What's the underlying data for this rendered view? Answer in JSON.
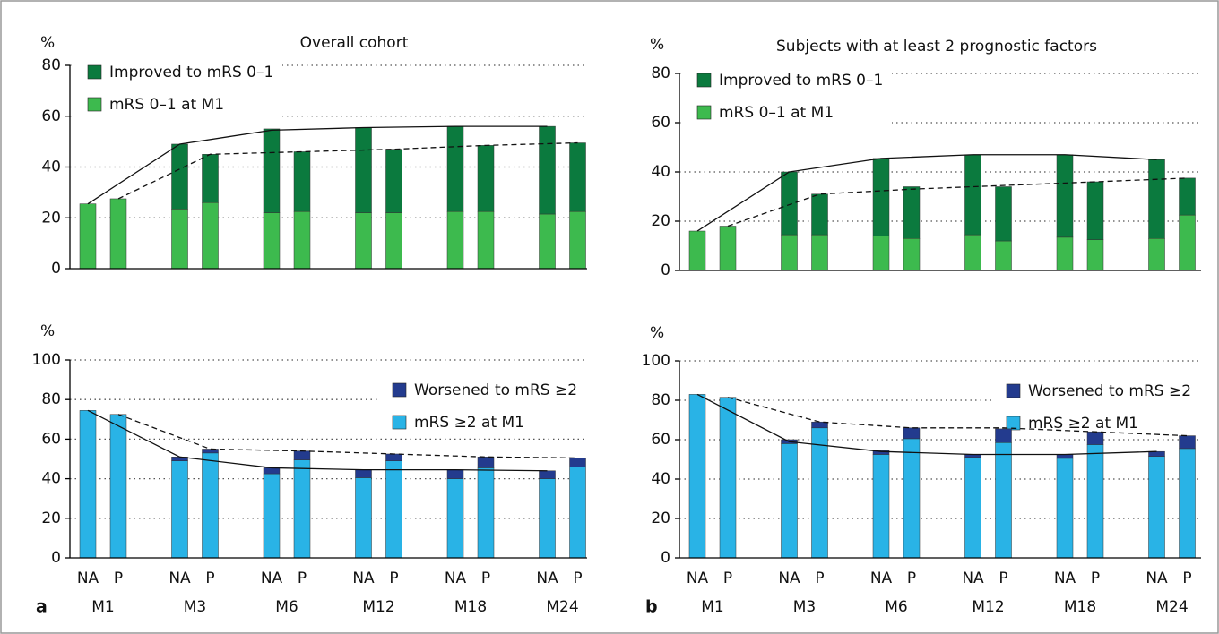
{
  "chart_data": [
    {
      "type": "bar",
      "stacked": true,
      "title": "Overall cohort",
      "y_label": "%",
      "ylim": [
        0,
        80
      ],
      "yticks": [
        0,
        20,
        40,
        60,
        80
      ],
      "grid": true,
      "legend": "upper left",
      "series": [
        {
          "name": "mRS 0–1 at M1",
          "color": "#3dba4e",
          "values": [
            25.5,
            27.5,
            23.5,
            26,
            22,
            22.5,
            22,
            22,
            22.5,
            22.5,
            21.5,
            22.5
          ]
        },
        {
          "name": "Improved to mRS 0–1",
          "color": "#0b7a3e",
          "values": [
            0,
            0,
            25.5,
            19,
            33,
            23.5,
            33.5,
            25,
            33.5,
            26,
            34.5,
            27
          ]
        }
      ],
      "lines": [
        {
          "dashed": false,
          "values": [
            25.5,
            49,
            54.5,
            55.5,
            56,
            56
          ]
        },
        {
          "dashed": true,
          "values": [
            27.5,
            45,
            46,
            47,
            48.5,
            49.5
          ]
        }
      ]
    },
    {
      "type": "bar",
      "stacked": true,
      "y_label": "%",
      "panel_label": "a",
      "categories": [
        "NA",
        "P",
        "NA",
        "P",
        "NA",
        "P",
        "NA",
        "P",
        "NA",
        "P",
        "NA",
        "P"
      ],
      "groups": [
        "M1",
        "M3",
        "M6",
        "M12",
        "M18",
        "M24"
      ],
      "ylim": [
        0,
        100
      ],
      "yticks": [
        0,
        20,
        40,
        60,
        80,
        100
      ],
      "grid": true,
      "legend": "upper right",
      "series": [
        {
          "name": "mRS ≥2 at M1",
          "color": "#29b3e6",
          "values": [
            74.5,
            72.5,
            49,
            53,
            42.5,
            49.5,
            40.5,
            49,
            40,
            45.5,
            40,
            46
          ]
        },
        {
          "name": "Worsened to mRS ≥2",
          "color": "#233b8e",
          "values": [
            0,
            0,
            2,
            2,
            3,
            4.5,
            4,
            3.5,
            4.5,
            5.5,
            4,
            4.5
          ]
        }
      ],
      "lines": [
        {
          "dashed": false,
          "values": [
            74.5,
            51,
            45.5,
            44.5,
            44.5,
            44
          ]
        },
        {
          "dashed": true,
          "values": [
            72.5,
            55,
            54,
            52.5,
            51,
            50.5
          ]
        }
      ]
    },
    {
      "type": "bar",
      "stacked": true,
      "title": "Subjects with at least 2 prognostic factors",
      "y_label": "%",
      "ylim": [
        0,
        80
      ],
      "yticks": [
        0,
        20,
        40,
        60,
        80
      ],
      "grid": true,
      "legend": "upper left",
      "series": [
        {
          "name": "mRS 0–1 at M1",
          "color": "#3dba4e",
          "values": [
            16,
            18,
            14.5,
            14.5,
            14,
            13,
            14.5,
            12,
            13.5,
            12.5,
            13,
            22.5
          ]
        },
        {
          "name": "Improved to mRS 0–1",
          "color": "#0b7a3e",
          "values": [
            0,
            0,
            25.5,
            16.5,
            31.5,
            21,
            32.5,
            22,
            33.5,
            23.5,
            32,
            15
          ]
        }
      ],
      "lines": [
        {
          "dashed": false,
          "values": [
            16,
            40,
            45.5,
            47,
            47,
            45
          ]
        },
        {
          "dashed": true,
          "values": [
            18,
            31,
            33,
            34.5,
            36,
            37.5
          ]
        }
      ]
    },
    {
      "type": "bar",
      "stacked": true,
      "y_label": "%",
      "panel_label": "b",
      "categories": [
        "NA",
        "P",
        "NA",
        "P",
        "NA",
        "P",
        "NA",
        "P",
        "NA",
        "P",
        "NA",
        "P"
      ],
      "groups": [
        "M1",
        "M3",
        "M6",
        "M12",
        "M18",
        "M24"
      ],
      "ylim": [
        0,
        100
      ],
      "yticks": [
        0,
        20,
        40,
        60,
        80,
        100
      ],
      "grid": true,
      "legend": "upper right",
      "series": [
        {
          "name": "mRS ≥2 at M1",
          "color": "#29b3e6",
          "values": [
            83,
            81.5,
            58,
            66,
            52.5,
            60.5,
            51,
            58.5,
            50.5,
            57.5,
            51.5,
            55.5
          ]
        },
        {
          "name": "Worsened to mRS ≥2",
          "color": "#233b8e",
          "values": [
            0,
            0,
            2,
            3,
            2,
            5.5,
            1.5,
            7,
            2,
            6.5,
            2.5,
            6.5
          ]
        }
      ],
      "lines": [
        {
          "dashed": false,
          "values": [
            83,
            59,
            54,
            52.5,
            52.5,
            54
          ]
        },
        {
          "dashed": true,
          "values": [
            81.5,
            69,
            66,
            66,
            64,
            62
          ]
        }
      ]
    }
  ]
}
